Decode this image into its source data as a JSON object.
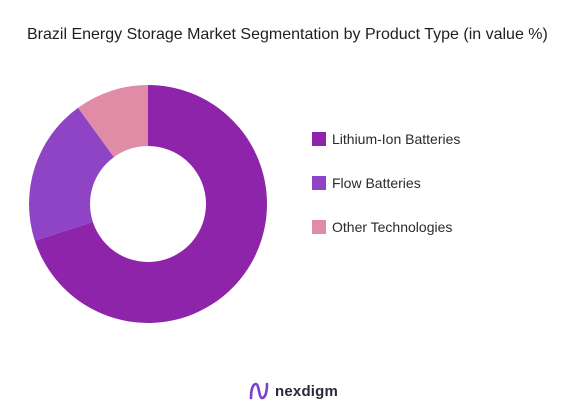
{
  "chart_data": {
    "type": "pie",
    "title": "Brazil Energy Storage Market Segmentation by Product Type (in value %)",
    "categories": [
      "Lithium-Ion Batteries",
      "Flow Batteries",
      "Other Technologies"
    ],
    "values": [
      70,
      20,
      10
    ],
    "colors": [
      "#8e24aa",
      "#8e44c4",
      "#e08ca6"
    ],
    "donut": true,
    "legend_position": "right",
    "data_labels": false
  },
  "brand": {
    "name": "nexdigm",
    "icon": "nexdigm-logo-icon"
  }
}
